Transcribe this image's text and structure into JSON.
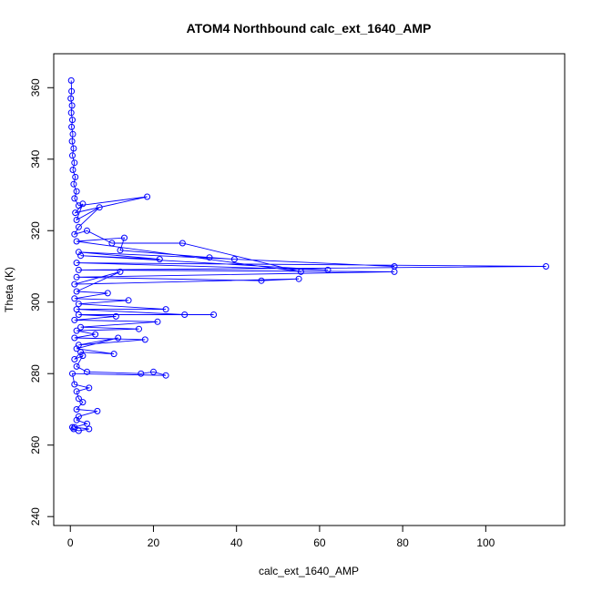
{
  "chart_data": {
    "type": "line",
    "title": "ATOM4 Northbound calc_ext_1640_AMP",
    "xlabel": "calc_ext_1640_AMP",
    "ylabel": "Theta (K)",
    "xlim": [
      -4,
      119
    ],
    "ylim": [
      237.5,
      369.5
    ],
    "xticks": [
      0,
      20,
      40,
      60,
      80,
      100
    ],
    "yticks": [
      240,
      260,
      280,
      300,
      320,
      340,
      360
    ],
    "grid": false,
    "legend": "none",
    "colors": {
      "series": "#0000ff",
      "axes": "#000000"
    },
    "series": [
      {
        "marker": "open-circle",
        "points": [
          [
            0.2,
            362
          ],
          [
            0.3,
            359
          ],
          [
            0.1,
            357
          ],
          [
            0.4,
            355
          ],
          [
            0.2,
            353
          ],
          [
            0.5,
            351
          ],
          [
            0.3,
            349
          ],
          [
            0.6,
            347
          ],
          [
            0.4,
            345
          ],
          [
            0.8,
            343
          ],
          [
            0.5,
            341
          ],
          [
            1.0,
            339
          ],
          [
            0.6,
            337
          ],
          [
            1.2,
            335
          ],
          [
            0.8,
            333
          ],
          [
            1.5,
            331
          ],
          [
            1.0,
            329
          ],
          [
            2.0,
            327
          ],
          [
            18.5,
            329.5
          ],
          [
            1.2,
            325
          ],
          [
            3.0,
            327.5
          ],
          [
            1.5,
            323
          ],
          [
            7.0,
            326.5
          ],
          [
            2.0,
            321
          ],
          [
            1.0,
            319
          ],
          [
            4.0,
            320
          ],
          [
            10.0,
            316.5
          ],
          [
            27.0,
            316.5
          ],
          [
            55.5,
            308.5
          ],
          [
            1.5,
            317
          ],
          [
            13.0,
            318
          ],
          [
            12.0,
            314.5
          ],
          [
            33.5,
            312.5
          ],
          [
            39.5,
            312
          ],
          [
            78.0,
            310
          ],
          [
            2.0,
            314
          ],
          [
            21.5,
            312
          ],
          [
            2.5,
            313
          ],
          [
            62.0,
            309
          ],
          [
            1.5,
            311
          ],
          [
            114.5,
            310
          ],
          [
            2.0,
            309
          ],
          [
            78.0,
            308.5
          ],
          [
            1.5,
            307
          ],
          [
            46.0,
            306
          ],
          [
            55.0,
            306.5
          ],
          [
            1.0,
            305
          ],
          [
            12.0,
            308.5
          ],
          [
            1.5,
            303
          ],
          [
            9.0,
            302.5
          ],
          [
            1.0,
            301
          ],
          [
            14.0,
            300.5
          ],
          [
            2.0,
            299.5
          ],
          [
            23.0,
            298
          ],
          [
            1.5,
            298
          ],
          [
            27.5,
            296.5
          ],
          [
            34.5,
            296.5
          ],
          [
            2.0,
            296.5
          ],
          [
            11.0,
            296
          ],
          [
            1.0,
            295
          ],
          [
            21.0,
            294.5
          ],
          [
            2.5,
            293
          ],
          [
            16.5,
            292.5
          ],
          [
            1.5,
            292
          ],
          [
            6.0,
            291
          ],
          [
            1.0,
            290
          ],
          [
            18.0,
            289.5
          ],
          [
            2.0,
            288
          ],
          [
            11.5,
            290
          ],
          [
            1.5,
            287
          ],
          [
            10.5,
            285.5
          ],
          [
            2.5,
            286
          ],
          [
            1.0,
            284
          ],
          [
            3.0,
            285
          ],
          [
            1.5,
            282
          ],
          [
            4.0,
            280.5
          ],
          [
            17.0,
            280
          ],
          [
            20.0,
            280.5
          ],
          [
            23.0,
            279.5
          ],
          [
            0.5,
            280
          ],
          [
            1.0,
            277
          ],
          [
            4.5,
            276
          ],
          [
            1.5,
            275
          ],
          [
            2.0,
            273
          ],
          [
            3.0,
            272
          ],
          [
            1.5,
            270
          ],
          [
            6.5,
            269.5
          ],
          [
            2.0,
            268
          ],
          [
            1.5,
            267
          ],
          [
            4.0,
            266
          ],
          [
            1.0,
            265
          ],
          [
            4.5,
            264.5
          ],
          [
            2.0,
            264
          ],
          [
            0.8,
            264.5
          ],
          [
            0.5,
            265
          ]
        ]
      }
    ]
  }
}
